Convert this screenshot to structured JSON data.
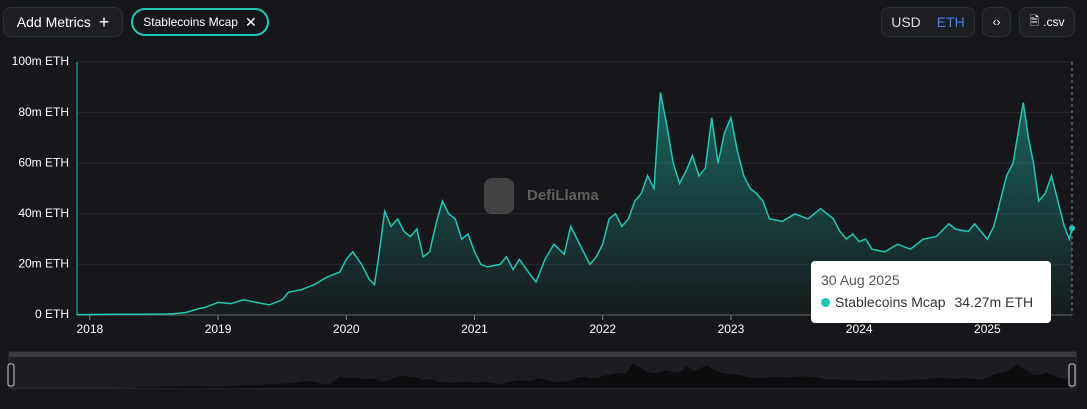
{
  "ui": {
    "add_metrics": "Add Metrics",
    "currency_usd": "USD",
    "currency_eth": "ETH",
    "csv": ".csv",
    "watermark": "DefiLlama",
    "tooltip": {
      "date": "30 Aug 2025",
      "value": "34.27m ETH"
    }
  },
  "chart_data": {
    "type": "area",
    "series": [
      {
        "name": "Stablecoins Mcap",
        "color": "#1fc7b6",
        "x": [
          2017.9,
          2018.0,
          2018.2,
          2018.4,
          2018.6,
          2018.65,
          2018.75,
          2018.85,
          2018.9,
          2019.0,
          2019.1,
          2019.2,
          2019.3,
          2019.4,
          2019.5,
          2019.55,
          2019.65,
          2019.75,
          2019.85,
          2019.95,
          2020.0,
          2020.05,
          2020.12,
          2020.18,
          2020.22,
          2020.25,
          2020.3,
          2020.35,
          2020.4,
          2020.45,
          2020.5,
          2020.55,
          2020.6,
          2020.65,
          2020.7,
          2020.75,
          2020.8,
          2020.85,
          2020.9,
          2020.95,
          2021.0,
          2021.05,
          2021.1,
          2021.2,
          2021.25,
          2021.3,
          2021.35,
          2021.42,
          2021.48,
          2021.55,
          2021.62,
          2021.7,
          2021.75,
          2021.8,
          2021.85,
          2021.9,
          2021.95,
          2022.0,
          2022.05,
          2022.1,
          2022.15,
          2022.2,
          2022.25,
          2022.3,
          2022.35,
          2022.4,
          2022.45,
          2022.5,
          2022.55,
          2022.6,
          2022.65,
          2022.7,
          2022.75,
          2022.8,
          2022.85,
          2022.9,
          2022.95,
          2023.0,
          2023.05,
          2023.1,
          2023.15,
          2023.2,
          2023.25,
          2023.3,
          2023.4,
          2023.5,
          2023.6,
          2023.7,
          2023.8,
          2023.85,
          2023.9,
          2023.95,
          2024.0,
          2024.05,
          2024.1,
          2024.2,
          2024.3,
          2024.4,
          2024.5,
          2024.6,
          2024.7,
          2024.75,
          2024.85,
          2024.9,
          2025.0,
          2025.05,
          2025.1,
          2025.15,
          2025.2,
          2025.25,
          2025.28,
          2025.32,
          2025.36,
          2025.4,
          2025.45,
          2025.5,
          2025.55,
          2025.6,
          2025.64,
          2025.66
        ],
        "values": [
          100000,
          200000,
          300000,
          300000,
          400000,
          500000,
          1000000,
          2500000,
          3000000,
          5000000,
          4500000,
          6000000,
          5000000,
          4000000,
          6000000,
          9000000,
          10000000,
          12000000,
          15000000,
          17000000,
          22000000,
          25000000,
          20000000,
          14000000,
          12000000,
          22000000,
          41000000,
          35000000,
          38000000,
          33000000,
          31000000,
          34000000,
          23000000,
          25000000,
          36000000,
          45000000,
          40000000,
          38000000,
          30000000,
          32000000,
          25000000,
          20000000,
          19000000,
          20000000,
          23000000,
          18000000,
          22000000,
          17000000,
          13000000,
          22000000,
          28000000,
          24000000,
          35000000,
          30000000,
          25000000,
          20000000,
          23000000,
          28000000,
          38000000,
          40000000,
          35000000,
          38000000,
          45000000,
          48000000,
          55000000,
          50000000,
          88000000,
          75000000,
          60000000,
          52000000,
          57000000,
          63000000,
          55000000,
          58000000,
          78000000,
          60000000,
          72000000,
          78000000,
          65000000,
          55000000,
          50000000,
          48000000,
          45000000,
          38000000,
          37000000,
          40000000,
          38000000,
          42000000,
          38000000,
          33000000,
          30000000,
          32000000,
          29000000,
          30000000,
          26000000,
          25000000,
          28000000,
          26000000,
          30000000,
          31000000,
          36000000,
          34000000,
          33000000,
          36000000,
          30000000,
          35000000,
          45000000,
          55000000,
          60000000,
          75000000,
          84000000,
          70000000,
          60000000,
          45000000,
          48000000,
          55000000,
          45000000,
          35000000,
          30000000,
          34270000
        ]
      }
    ],
    "xlim": [
      2017.9,
      2025.66
    ],
    "xticks": [
      2018,
      2019,
      2020,
      2021,
      2022,
      2023,
      2024,
      2025
    ],
    "ylim": [
      0,
      100000000
    ],
    "yticks": [
      {
        "value": 0,
        "label": "0 ETH"
      },
      {
        "value": 20000000,
        "label": "20m ETH"
      },
      {
        "value": 40000000,
        "label": "40m ETH"
      },
      {
        "value": 60000000,
        "label": "60m ETH"
      },
      {
        "value": 80000000,
        "label": "80m ETH"
      },
      {
        "value": 100000000,
        "label": "100m ETH"
      }
    ],
    "grid": true
  }
}
